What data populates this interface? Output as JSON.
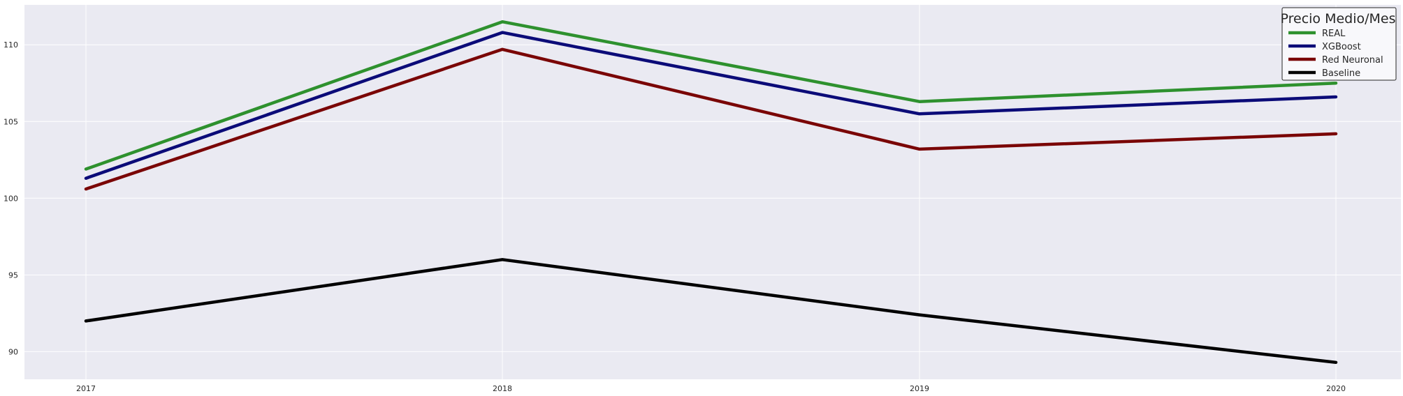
{
  "chart_data": {
    "type": "line",
    "title": "",
    "xlabel": "",
    "ylabel": "",
    "categories": [
      "2017",
      "2018",
      "2019",
      "2020"
    ],
    "ylim": [
      88.2,
      112.6
    ],
    "yticks": [
      90,
      95,
      100,
      105,
      110
    ],
    "grid": true,
    "legend": {
      "title": "Precio Medio/Mes",
      "position": "top-right"
    },
    "series": [
      {
        "name": "REAL",
        "color": "#2e912e",
        "values": [
          101.9,
          111.5,
          106.3,
          107.5
        ]
      },
      {
        "name": "XGBoost",
        "color": "#0b0b78",
        "values": [
          101.3,
          110.8,
          105.5,
          106.6
        ]
      },
      {
        "name": "Red Neuronal",
        "color": "#7a0606",
        "values": [
          100.6,
          109.7,
          103.2,
          104.2
        ]
      },
      {
        "name": "Baseline",
        "color": "#000000",
        "values": [
          92.0,
          96.0,
          92.4,
          89.3
        ]
      }
    ],
    "colors": {
      "plot_background": "#eaeaf2",
      "grid": "#ffffff"
    }
  }
}
